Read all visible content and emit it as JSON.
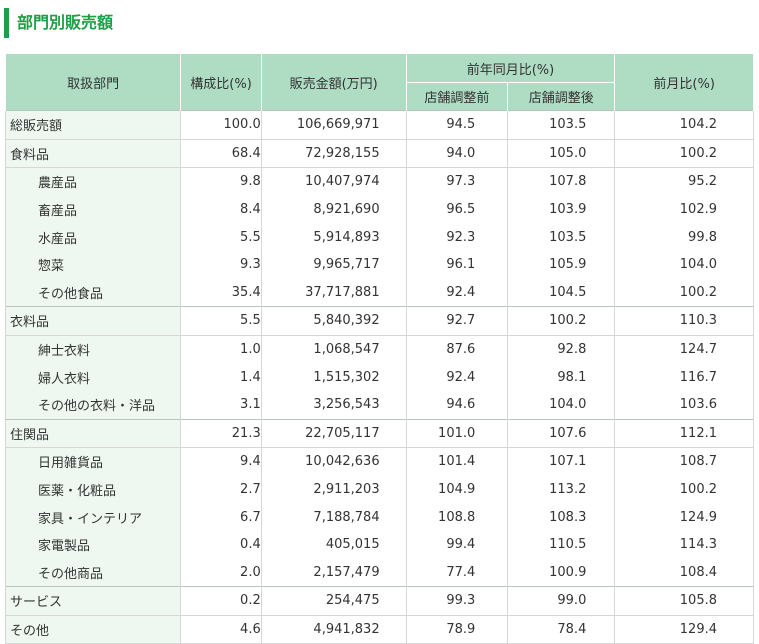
{
  "title": "部門別販売額",
  "headers": {
    "dept": "取扱部門",
    "ratio": "構成比(%)",
    "sales": "販売金額(万円)",
    "yoy": "前年同月比(%)",
    "yoy_before": "店舗調整前",
    "yoy_after": "店舗調整後",
    "mom": "前月比(%)"
  },
  "groups": [
    {
      "rows": [
        {
          "label": "総販売額",
          "ratio": "100.0",
          "sales": "106,669,971",
          "yoy_before": "94.5",
          "yoy_after": "103.5",
          "mom": "104.2",
          "sub": false
        }
      ]
    },
    {
      "rows": [
        {
          "label": "食料品",
          "ratio": "68.4",
          "sales": "72,928,155",
          "yoy_before": "94.0",
          "yoy_after": "105.0",
          "mom": "100.2",
          "sub": false
        },
        {
          "label": "農産品",
          "ratio": "9.8",
          "sales": "10,407,974",
          "yoy_before": "97.3",
          "yoy_after": "107.8",
          "mom": "95.2",
          "sub": true
        },
        {
          "label": "畜産品",
          "ratio": "8.4",
          "sales": "8,921,690",
          "yoy_before": "96.5",
          "yoy_after": "103.9",
          "mom": "102.9",
          "sub": true
        },
        {
          "label": "水産品",
          "ratio": "5.5",
          "sales": "5,914,893",
          "yoy_before": "92.3",
          "yoy_after": "103.5",
          "mom": "99.8",
          "sub": true
        },
        {
          "label": "惣菜",
          "ratio": "9.3",
          "sales": "9,965,717",
          "yoy_before": "96.1",
          "yoy_after": "105.9",
          "mom": "104.0",
          "sub": true
        },
        {
          "label": "その他食品",
          "ratio": "35.4",
          "sales": "37,717,881",
          "yoy_before": "92.4",
          "yoy_after": "104.5",
          "mom": "100.2",
          "sub": true
        }
      ]
    },
    {
      "rows": [
        {
          "label": "衣料品",
          "ratio": "5.5",
          "sales": "5,840,392",
          "yoy_before": "92.7",
          "yoy_after": "100.2",
          "mom": "110.3",
          "sub": false
        },
        {
          "label": "紳士衣料",
          "ratio": "1.0",
          "sales": "1,068,547",
          "yoy_before": "87.6",
          "yoy_after": "92.8",
          "mom": "124.7",
          "sub": true
        },
        {
          "label": "婦人衣料",
          "ratio": "1.4",
          "sales": "1,515,302",
          "yoy_before": "92.4",
          "yoy_after": "98.1",
          "mom": "116.7",
          "sub": true
        },
        {
          "label": "その他の衣料・洋品",
          "ratio": "3.1",
          "sales": "3,256,543",
          "yoy_before": "94.6",
          "yoy_after": "104.0",
          "mom": "103.6",
          "sub": true
        }
      ]
    },
    {
      "rows": [
        {
          "label": "住関品",
          "ratio": "21.3",
          "sales": "22,705,117",
          "yoy_before": "101.0",
          "yoy_after": "107.6",
          "mom": "112.1",
          "sub": false
        },
        {
          "label": "日用雑貨品",
          "ratio": "9.4",
          "sales": "10,042,636",
          "yoy_before": "101.4",
          "yoy_after": "107.1",
          "mom": "108.7",
          "sub": true
        },
        {
          "label": "医薬・化粧品",
          "ratio": "2.7",
          "sales": "2,911,203",
          "yoy_before": "104.9",
          "yoy_after": "113.2",
          "mom": "100.2",
          "sub": true
        },
        {
          "label": "家具・インテリア",
          "ratio": "6.7",
          "sales": "7,188,784",
          "yoy_before": "108.8",
          "yoy_after": "108.3",
          "mom": "124.9",
          "sub": true
        },
        {
          "label": "家電製品",
          "ratio": "0.4",
          "sales": "405,015",
          "yoy_before": "99.4",
          "yoy_after": "110.5",
          "mom": "114.3",
          "sub": true
        },
        {
          "label": "その他商品",
          "ratio": "2.0",
          "sales": "2,157,479",
          "yoy_before": "77.4",
          "yoy_after": "100.9",
          "mom": "108.4",
          "sub": true
        }
      ]
    },
    {
      "rows": [
        {
          "label": "サービス",
          "ratio": "0.2",
          "sales": "254,475",
          "yoy_before": "99.3",
          "yoy_after": "99.0",
          "mom": "105.8",
          "sub": false
        }
      ]
    },
    {
      "rows": [
        {
          "label": "その他",
          "ratio": "4.6",
          "sales": "4,941,832",
          "yoy_before": "78.9",
          "yoy_after": "78.4",
          "mom": "129.4",
          "sub": false
        }
      ]
    }
  ]
}
